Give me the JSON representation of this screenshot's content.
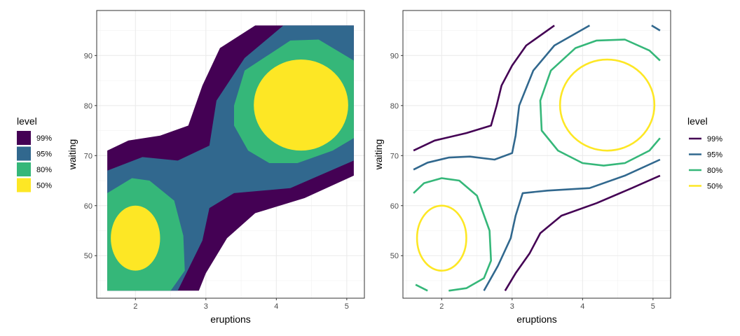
{
  "chart_data": [
    {
      "type": "contour-filled",
      "xlabel": "eruptions",
      "ylabel": "waiting",
      "xlim": [
        1.45,
        5.25
      ],
      "ylim": [
        41.5,
        99
      ],
      "x_ticks": [
        2,
        3,
        4,
        5
      ],
      "y_ticks": [
        50,
        60,
        70,
        80,
        90
      ],
      "grid": true,
      "legend": {
        "title": "level",
        "position": "left",
        "items": [
          "99%",
          "95%",
          "80%",
          "50%"
        ]
      },
      "series": [
        {
          "label": "99%",
          "color": "#440154",
          "polygon": [
            [
              1.6,
              43
            ],
            [
              2.9,
              43
            ],
            [
              3.0,
              46.5
            ],
            [
              3.3,
              53.5
            ],
            [
              3.7,
              58.5
            ],
            [
              4.4,
              61.5
            ],
            [
              5.1,
              66
            ],
            [
              5.1,
              96
            ],
            [
              3.7,
              96
            ],
            [
              3.2,
              91.5
            ],
            [
              2.95,
              84
            ],
            [
              2.75,
              76
            ],
            [
              2.35,
              74
            ],
            [
              1.9,
              73
            ],
            [
              1.6,
              71
            ]
          ]
        },
        {
          "label": "95%",
          "color": "#31688e",
          "polygon": [
            [
              1.6,
              43
            ],
            [
              2.6,
              43
            ],
            [
              2.95,
              53
            ],
            [
              3.05,
              59.5
            ],
            [
              3.4,
              62.5
            ],
            [
              4.2,
              63.5
            ],
            [
              5.1,
              69
            ],
            [
              5.1,
              96
            ],
            [
              4.1,
              96
            ],
            [
              3.55,
              89.5
            ],
            [
              3.15,
              81
            ],
            [
              3.05,
              72
            ],
            [
              2.6,
              69
            ],
            [
              2.1,
              69.7
            ],
            [
              1.6,
              67
            ]
          ]
        },
        {
          "label": "80%",
          "color": "#35b779",
          "polygon": [
            [
              1.6,
              43
            ],
            [
              2.5,
              43
            ],
            [
              2.7,
              47
            ],
            [
              2.68,
              54
            ],
            [
              2.55,
              61
            ],
            [
              2.2,
              65
            ],
            [
              1.95,
              65.5
            ],
            [
              1.6,
              62.5
            ]
          ]
        },
        {
          "label": "80%",
          "color": "#35b779",
          "polygon": [
            [
              3.4,
              80
            ],
            [
              3.55,
              87
            ],
            [
              4.2,
              93
            ],
            [
              4.6,
              93.2
            ],
            [
              5.1,
              89
            ],
            [
              5.1,
              73.5
            ],
            [
              4.8,
              71
            ],
            [
              4.3,
              68.5
            ],
            [
              3.9,
              68.5
            ],
            [
              3.6,
              71
            ],
            [
              3.4,
              76
            ]
          ]
        },
        {
          "label": "50%",
          "color": "#fde725",
          "type": "ellipse",
          "center": [
            2.0,
            53.5
          ],
          "radius": [
            0.35,
            6.5
          ]
        },
        {
          "label": "50%",
          "color": "#fde725",
          "type": "ellipse",
          "center": [
            4.35,
            80.1
          ],
          "radius": [
            0.67,
            9.1
          ]
        }
      ]
    },
    {
      "type": "contour-lines",
      "xlabel": "eruptions",
      "ylabel": "waiting",
      "xlim": [
        1.45,
        5.25
      ],
      "ylim": [
        41.5,
        99
      ],
      "x_ticks": [
        2,
        3,
        4,
        5
      ],
      "y_ticks": [
        50,
        60,
        70,
        80,
        90
      ],
      "grid": true,
      "legend": {
        "title": "level",
        "position": "right",
        "items": [
          "99%",
          "95%",
          "80%",
          "50%"
        ]
      },
      "series": [
        {
          "label": "99%",
          "color": "#440154",
          "x": [
            1.6,
            1.9,
            2.35,
            2.7,
            2.78,
            2.85,
            3.0,
            3.2,
            3.6
          ],
          "y": [
            71,
            73,
            74.5,
            76,
            80,
            84,
            88,
            92,
            96
          ]
        },
        {
          "label": "99%",
          "color": "#440154",
          "x": [
            2.9,
            3.05,
            3.25,
            3.4,
            3.7,
            4.2,
            4.7,
            5.1
          ],
          "y": [
            43,
            46.5,
            50.5,
            54.5,
            58,
            60.5,
            63.5,
            66
          ]
        },
        {
          "label": "95%",
          "color": "#31688e",
          "x": [
            1.6,
            1.8,
            2.1,
            2.4,
            2.75,
            3.0,
            3.05,
            3.1,
            3.3,
            3.6,
            4.1
          ],
          "y": [
            67.2,
            68.6,
            69.6,
            69.8,
            69.2,
            70.5,
            74,
            80,
            87,
            92,
            96
          ]
        },
        {
          "label": "95%",
          "color": "#31688e",
          "x": [
            2.6,
            2.8,
            2.98,
            3.05,
            3.15,
            3.5,
            4.1,
            4.6,
            5.1
          ],
          "y": [
            43,
            48,
            53.5,
            58,
            62.5,
            63,
            63.5,
            66,
            69.2
          ]
        },
        {
          "label": "95%",
          "color": "#31688e",
          "x": [
            4.98,
            5.1
          ],
          "y": [
            96,
            95
          ]
        },
        {
          "label": "80%",
          "color": "#35b779",
          "x": [
            1.6,
            1.75,
            2.0,
            2.25,
            2.5,
            2.68,
            2.7,
            2.6,
            2.35,
            2.1
          ],
          "y": [
            62.5,
            64.5,
            65.5,
            65,
            62,
            55,
            49,
            45.5,
            43.5,
            43
          ]
        },
        {
          "label": "80%",
          "color": "#35b779",
          "x": [
            1.63,
            1.8
          ],
          "y": [
            44.2,
            43
          ]
        },
        {
          "label": "80%",
          "color": "#35b779",
          "x": [
            5.1,
            4.95,
            4.6,
            4.3,
            4.0,
            3.65,
            3.42,
            3.4,
            3.55,
            3.9,
            4.2,
            4.6,
            4.95,
            5.1
          ],
          "y": [
            73.5,
            71,
            68.5,
            68,
            68.5,
            71,
            75,
            81,
            87,
            91.5,
            93,
            93.2,
            91,
            89
          ]
        },
        {
          "label": "50%",
          "color": "#fde725",
          "type": "ellipse",
          "center": [
            2.0,
            53.5
          ],
          "radius": [
            0.35,
            6.5
          ]
        },
        {
          "label": "50%",
          "color": "#fde725",
          "type": "ellipse",
          "center": [
            4.35,
            80.1
          ],
          "radius": [
            0.67,
            9.1
          ]
        }
      ]
    }
  ]
}
